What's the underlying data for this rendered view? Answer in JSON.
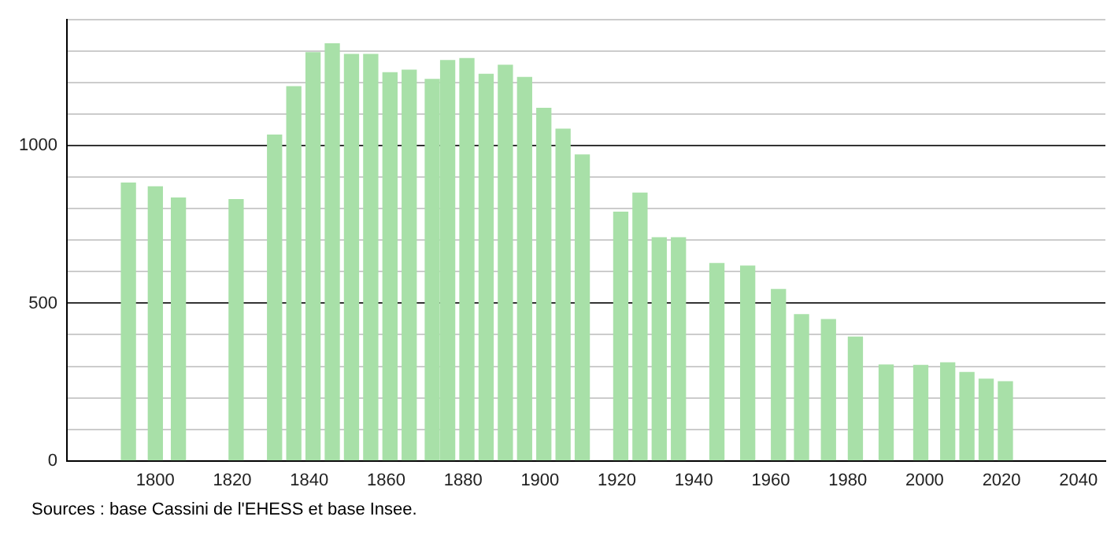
{
  "chart_data": {
    "type": "bar",
    "x": [
      1793,
      1800,
      1806,
      1821,
      1831,
      1836,
      1841,
      1846,
      1851,
      1856,
      1861,
      1866,
      1872,
      1876,
      1881,
      1886,
      1891,
      1896,
      1901,
      1906,
      1911,
      1921,
      1926,
      1931,
      1936,
      1946,
      1954,
      1962,
      1968,
      1975,
      1982,
      1990,
      1999,
      2006,
      2011,
      2016,
      2021
    ],
    "values": [
      882,
      870,
      834,
      829,
      1034,
      1188,
      1296,
      1324,
      1290,
      1290,
      1232,
      1240,
      1211,
      1271,
      1277,
      1227,
      1256,
      1217,
      1119,
      1053,
      971,
      789,
      850,
      708,
      708,
      626,
      618,
      544,
      464,
      448,
      393,
      304,
      303,
      311,
      280,
      259,
      251
    ],
    "color": "#a8e0a8",
    "xlim": [
      1777,
      2047
    ],
    "xticks": [
      1800,
      1820,
      1840,
      1860,
      1880,
      1900,
      1920,
      1940,
      1960,
      1980,
      2000,
      2020,
      2040
    ],
    "ylim": [
      0,
      1400
    ],
    "yticks": [
      0,
      {
        "value": 100,
        "label": null
      },
      {
        "value": 200,
        "label": null
      },
      {
        "value": 300,
        "label": null
      },
      {
        "value": 400,
        "label": null
      },
      500,
      {
        "value": 600,
        "label": null
      },
      {
        "value": 700,
        "label": null
      },
      {
        "value": 800,
        "label": null
      },
      {
        "value": 900,
        "label": null
      },
      1000,
      {
        "value": 1100,
        "label": null
      },
      {
        "value": 1200,
        "label": null
      },
      {
        "value": 1300,
        "label": null
      },
      {
        "value": 1400,
        "label": null
      }
    ],
    "grid": "y",
    "annotations": [
      "Sources : base Cassini de l'EHESS et base Insee."
    ]
  }
}
